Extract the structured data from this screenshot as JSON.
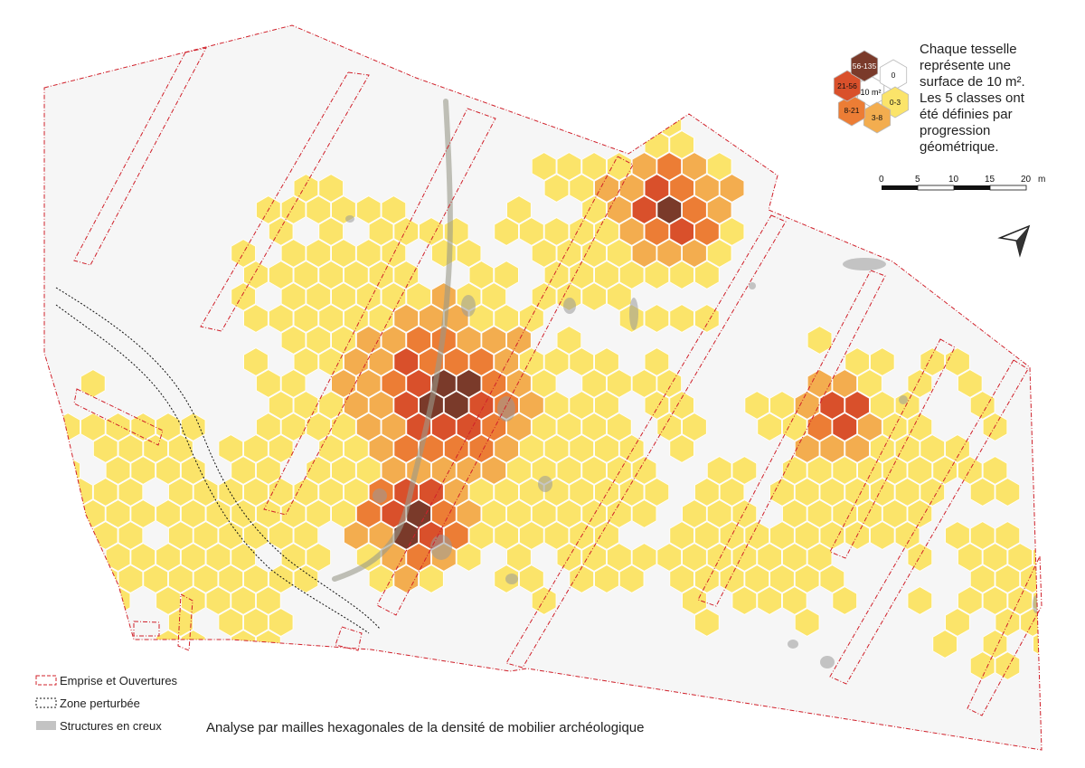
{
  "note": {
    "lines": [
      "Chaque tesselle",
      "représente une",
      "surface de 10 m².",
      "Les 5 classes ont",
      "été définies par",
      "progression",
      "géométrique."
    ]
  },
  "classes": [
    {
      "label": "0",
      "color": "#ffffff"
    },
    {
      "label": "0-3",
      "color": "#fbe46a"
    },
    {
      "label": "3-8",
      "color": "#f3ad4f"
    },
    {
      "label": "8-21",
      "color": "#ec7d35"
    },
    {
      "label": "21-56",
      "color": "#d9502b"
    },
    {
      "label": "56-135",
      "color": "#7a3a2a"
    }
  ],
  "center_label": "10 m²",
  "scale": {
    "ticks": [
      "0",
      "5",
      "10",
      "15",
      "20"
    ],
    "unit": "m"
  },
  "legend": [
    {
      "label": "Emprise et Ouvertures",
      "style": "red-dashed"
    },
    {
      "label": "Zone perturbée",
      "style": "black-dotted"
    },
    {
      "label": "Structures en creux",
      "style": "grey-fill"
    }
  ],
  "caption": "Analyse par mailles hexagonales de la densité de mobilier archéologique"
}
